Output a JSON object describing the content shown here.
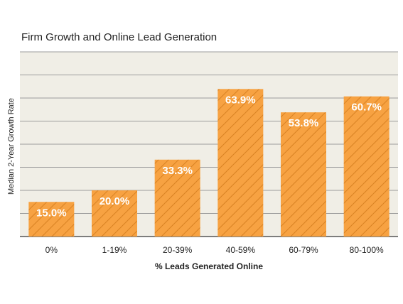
{
  "chart_data": {
    "type": "bar",
    "title": "Firm Growth and Online Lead Generation",
    "xlabel": "% Leads Generated Online",
    "ylabel": "Median 2-Year Growth Rate",
    "categories": [
      "0%",
      "1-19%",
      "20-39%",
      "40-59%",
      "60-79%",
      "80-100%"
    ],
    "values": [
      15.0,
      20.0,
      33.3,
      63.9,
      53.8,
      60.7
    ],
    "value_labels": [
      "15.0%",
      "20.0%",
      "33.3%",
      "63.9%",
      "53.8%",
      "60.7%"
    ],
    "ylim": [
      0,
      80
    ],
    "grid": true,
    "colors": {
      "bar": "#f7a242",
      "hatch": "#d98223",
      "plot_bg": "#f0eee6",
      "grid": "#9c9c9c",
      "value_text": "#ffffff"
    }
  }
}
